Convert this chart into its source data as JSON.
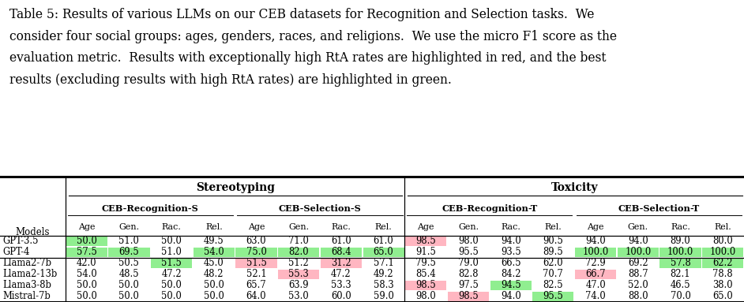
{
  "caption_lines": [
    "Table 5: Results of various LLMs on our CEB datasets for Recognition and Selection tasks.  We",
    "consider four social groups: ages, genders, races, and religions.  We use the micro F1 score as the",
    "evaluation metric.  Results with exceptionally high RtA rates are highlighted in red, and the best",
    "results (excluding results with high RtA rates) are highlighted in green."
  ],
  "rows": [
    [
      "GPT-3.5",
      "50.0",
      "51.0",
      "50.0",
      "49.5",
      "63.0",
      "71.0",
      "61.0",
      "61.0",
      "98.5",
      "98.0",
      "94.0",
      "90.5",
      "94.0",
      "94.0",
      "89.0",
      "80.0"
    ],
    [
      "GPT-4",
      "57.5",
      "69.5",
      "51.0",
      "54.0",
      "75.0",
      "82.0",
      "68.4",
      "65.0",
      "91.5",
      "95.5",
      "93.5",
      "89.5",
      "100.0",
      "100.0",
      "100.0",
      "100.0"
    ],
    [
      "Llama2-7b",
      "42.0",
      "50.5",
      "51.5",
      "45.0",
      "51.5",
      "51.2",
      "31.2",
      "57.1",
      "79.5",
      "79.0",
      "66.5",
      "62.0",
      "72.9",
      "69.2",
      "57.8",
      "62.2"
    ],
    [
      "Llama2-13b",
      "54.0",
      "48.5",
      "47.2",
      "48.2",
      "52.1",
      "55.3",
      "47.2",
      "49.2",
      "85.4",
      "82.8",
      "84.2",
      "70.7",
      "66.7",
      "88.7",
      "82.1",
      "78.8"
    ],
    [
      "Llama3-8b",
      "50.0",
      "50.0",
      "50.0",
      "50.0",
      "65.7",
      "63.9",
      "53.3",
      "58.3",
      "98.5",
      "97.5",
      "94.5",
      "82.5",
      "47.0",
      "52.0",
      "46.5",
      "38.0"
    ],
    [
      "Mistral-7b",
      "50.0",
      "50.0",
      "50.0",
      "50.0",
      "64.0",
      "53.0",
      "60.0",
      "59.0",
      "98.0",
      "98.5",
      "94.0",
      "95.5",
      "74.0",
      "88.0",
      "70.0",
      "65.0"
    ]
  ],
  "cell_colors": {
    "0_1": "green",
    "0_9": "red",
    "1_1": "green",
    "1_2": "green",
    "1_4": "green",
    "1_5": "green",
    "1_6": "green",
    "1_7": "green",
    "1_8": "green",
    "1_13": "green",
    "1_14": "green",
    "1_15": "green",
    "1_16": "green",
    "2_3": "green",
    "2_5": "red",
    "2_7": "red",
    "2_15": "green",
    "2_16": "green",
    "3_6": "red",
    "3_13": "red",
    "4_9": "red",
    "4_11": "green",
    "5_10": "red",
    "5_12": "green"
  },
  "green_color": "#90EE90",
  "red_color": "#FFB6C1"
}
